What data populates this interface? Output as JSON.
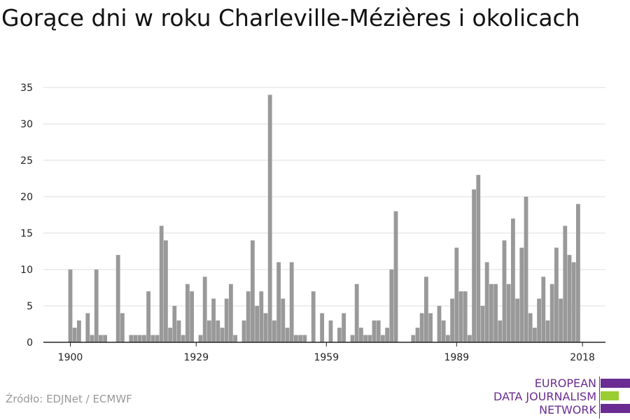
{
  "title": "Gorące dni w roku Charleville-Mézières i okolicach",
  "source": "Źródło: EDJNet / ECMWF",
  "logo": {
    "lines": [
      "EUROPEAN",
      "DATA JOURNALISM",
      "NETWORK"
    ],
    "colors": {
      "purple": "#6a2c91",
      "green": "#9acd32"
    }
  },
  "chart_data": {
    "type": "bar",
    "title": "Gorące dni w roku Charleville-Mézières i okolicach",
    "xlabel": "",
    "ylabel": "",
    "bar_color": "#999999",
    "grid": true,
    "x": [
      1900,
      1901,
      1902,
      1903,
      1904,
      1905,
      1906,
      1907,
      1908,
      1909,
      1910,
      1911,
      1912,
      1913,
      1914,
      1915,
      1916,
      1917,
      1918,
      1919,
      1920,
      1921,
      1922,
      1923,
      1924,
      1925,
      1926,
      1927,
      1928,
      1929,
      1930,
      1931,
      1932,
      1933,
      1934,
      1935,
      1936,
      1937,
      1938,
      1939,
      1940,
      1941,
      1942,
      1943,
      1944,
      1945,
      1946,
      1947,
      1948,
      1949,
      1950,
      1951,
      1952,
      1953,
      1954,
      1955,
      1956,
      1957,
      1958,
      1959,
      1960,
      1961,
      1962,
      1963,
      1964,
      1965,
      1966,
      1967,
      1968,
      1969,
      1970,
      1971,
      1972,
      1973,
      1974,
      1975,
      1976,
      1977,
      1978,
      1979,
      1980,
      1981,
      1982,
      1983,
      1984,
      1985,
      1986,
      1987,
      1988,
      1989,
      1990,
      1991,
      1992,
      1993,
      1994,
      1995,
      1996,
      1997,
      1998,
      1999,
      2000,
      2001,
      2002,
      2003,
      2004,
      2005,
      2006,
      2007,
      2008,
      2009,
      2010,
      2011,
      2012,
      2013,
      2014,
      2015,
      2016,
      2017,
      2018
    ],
    "values": [
      10,
      2,
      3,
      0,
      4,
      1,
      10,
      1,
      1,
      0,
      0,
      12,
      4,
      0,
      1,
      1,
      1,
      1,
      7,
      1,
      1,
      16,
      14,
      2,
      5,
      3,
      1,
      8,
      7,
      0,
      1,
      9,
      3,
      6,
      3,
      2,
      6,
      8,
      1,
      0,
      3,
      7,
      14,
      5,
      7,
      4,
      34,
      3,
      11,
      6,
      2,
      11,
      1,
      1,
      1,
      0,
      7,
      0,
      4,
      0,
      3,
      0,
      2,
      4,
      0,
      1,
      8,
      2,
      1,
      1,
      3,
      3,
      1,
      2,
      10,
      18,
      0,
      0,
      0,
      1,
      2,
      4,
      9,
      4,
      0,
      5,
      3,
      1,
      6,
      13,
      7,
      7,
      1,
      21,
      23,
      5,
      11,
      8,
      8,
      3,
      14,
      8,
      17,
      6,
      13,
      20,
      4,
      2,
      6,
      9,
      3,
      8,
      13,
      6,
      16,
      12,
      11,
      19,
      0
    ],
    "xticks": [
      1900,
      1929,
      1959,
      1989,
      2018
    ],
    "yticks": [
      0,
      5,
      10,
      15,
      20,
      25,
      30,
      35
    ],
    "xlim": [
      1900,
      2018
    ],
    "ylim": [
      0,
      35
    ]
  }
}
